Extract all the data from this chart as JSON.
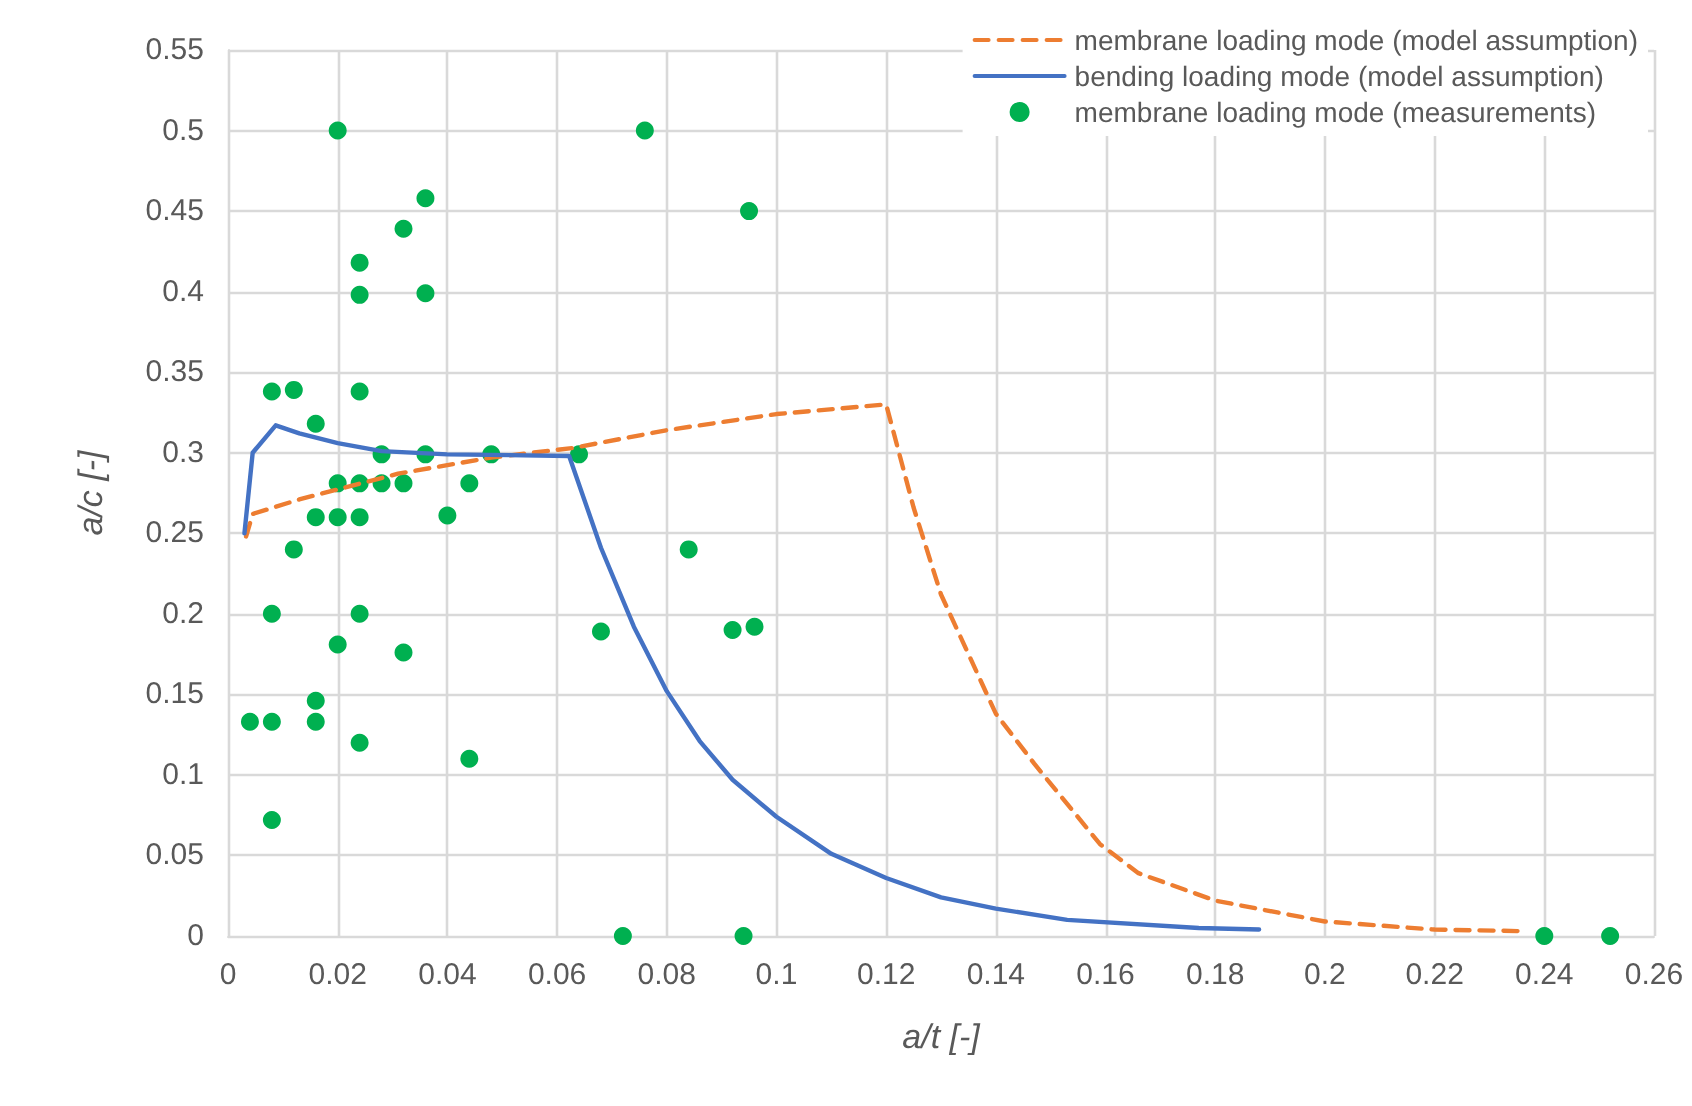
{
  "chart_data": {
    "type": "scatter",
    "xlabel": "a/t [-]",
    "ylabel": "a/c [-]",
    "xlim": [
      0,
      0.26
    ],
    "xticks": [
      0,
      0.02,
      0.04,
      0.06,
      0.08,
      0.1,
      0.12,
      0.14,
      0.16,
      0.18,
      0.2,
      0.22,
      0.24,
      0.26
    ],
    "ylim": [
      0,
      0.55
    ],
    "yticks": [
      0,
      0.05,
      0.1,
      0.15,
      0.2,
      0.25,
      0.3,
      0.35,
      0.4,
      0.45,
      0.5,
      0.55
    ],
    "grid": true,
    "legend": "top right",
    "series": [
      {
        "name": "membrane loading mode (model assumption)",
        "type": "line",
        "color": "#ed7d31",
        "line_style": "dashed",
        "marker": "none",
        "x": [
          0.0033,
          0.0045,
          0.013,
          0.031,
          0.048,
          0.063,
          0.08,
          0.1,
          0.12,
          0.125,
          0.13,
          0.135,
          0.14,
          0.147,
          0.159,
          0.166,
          0.18,
          0.2,
          0.22,
          0.236
        ],
        "values": [
          0.248,
          0.262,
          0.271,
          0.287,
          0.297,
          0.303,
          0.314,
          0.324,
          0.33,
          0.266,
          0.212,
          0.175,
          0.138,
          0.107,
          0.057,
          0.039,
          0.022,
          0.009,
          0.004,
          0.003
        ]
      },
      {
        "name": "bending loading mode (model assumption)",
        "type": "line",
        "color": "#4472c4",
        "line_style": "solid",
        "marker": "none",
        "x": [
          0.003,
          0.0045,
          0.0087,
          0.013,
          0.02,
          0.028,
          0.04,
          0.0622,
          0.068,
          0.074,
          0.08,
          0.086,
          0.092,
          0.1,
          0.11,
          0.12,
          0.13,
          0.14,
          0.153,
          0.177,
          0.188
        ],
        "values": [
          0.25,
          0.3,
          0.317,
          0.312,
          0.306,
          0.301,
          0.299,
          0.298,
          0.241,
          0.192,
          0.152,
          0.121,
          0.097,
          0.074,
          0.051,
          0.036,
          0.024,
          0.017,
          0.01,
          0.005,
          0.004
        ]
      },
      {
        "name": "membrane loading mode (measurements)",
        "color": "#00b050",
        "marker": "circle",
        "x": [
          0.02,
          0.076,
          0.036,
          0.032,
          0.095,
          0.024,
          0.024,
          0.036,
          0.008,
          0.012,
          0.024,
          0.016,
          0.028,
          0.036,
          0.048,
          0.064,
          0.02,
          0.024,
          0.028,
          0.032,
          0.044,
          0.016,
          0.02,
          0.024,
          0.04,
          0.012,
          0.084,
          0.008,
          0.024,
          0.02,
          0.032,
          0.068,
          0.092,
          0.096,
          0.016,
          0.004,
          0.008,
          0.016,
          0.024,
          0.044,
          0.008,
          0.072,
          0.094,
          0.24,
          0.252
        ],
        "values": [
          0.5,
          0.5,
          0.458,
          0.439,
          0.45,
          0.418,
          0.398,
          0.399,
          0.338,
          0.339,
          0.338,
          0.318,
          0.299,
          0.299,
          0.299,
          0.299,
          0.281,
          0.281,
          0.281,
          0.281,
          0.281,
          0.26,
          0.26,
          0.26,
          0.261,
          0.24,
          0.24,
          0.2,
          0.2,
          0.181,
          0.176,
          0.189,
          0.19,
          0.192,
          0.146,
          0.133,
          0.133,
          0.133,
          0.12,
          0.11,
          0.072,
          0,
          0,
          0,
          0
        ]
      }
    ]
  }
}
